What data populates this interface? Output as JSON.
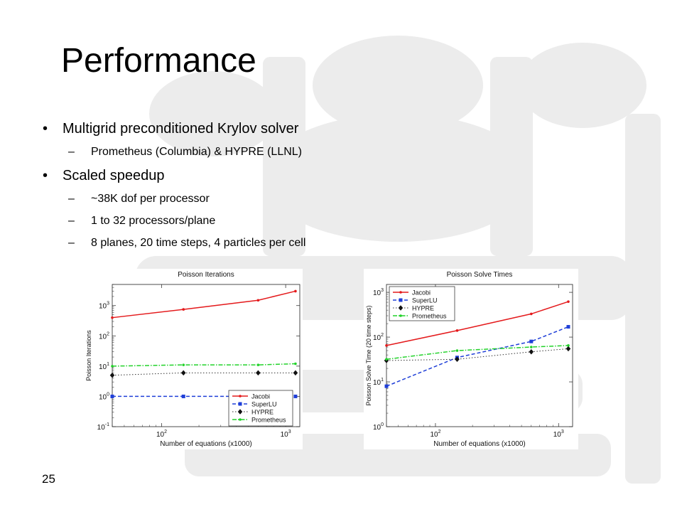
{
  "slide": {
    "title": "Performance",
    "page_number": "25",
    "bullets": [
      {
        "level": 1,
        "text": "Multigrid preconditioned Krylov solver"
      },
      {
        "level": 2,
        "text": "Prometheus (Columbia) & HYPRE (LLNL)"
      },
      {
        "level": 1,
        "text": "Scaled speedup"
      },
      {
        "level": 2,
        "text": "~38K dof per processor"
      },
      {
        "level": 2,
        "text": "1 to 32 processors/plane"
      },
      {
        "level": 2,
        "text": "8 planes, 20 time steps, 4 particles per cell"
      }
    ],
    "bullet_marks": {
      "level1": "•",
      "level2": "–"
    }
  },
  "chart_data": [
    {
      "type": "line",
      "title": "Poisson Iterations",
      "xlabel": "Number of equations (x1000)",
      "ylabel": "Poisson Iterations",
      "xscale": "log",
      "yscale": "log",
      "xlim": [
        40,
        1300
      ],
      "ylim": [
        0.1,
        5000
      ],
      "xticks": [
        100,
        1000
      ],
      "xtick_labels": [
        "10^2",
        "10^3"
      ],
      "yticks": [
        0.1,
        1,
        10,
        100,
        1000
      ],
      "ytick_labels": [
        "10^-1",
        "10^0",
        "10^1",
        "10^2",
        "10^3"
      ],
      "grid": false,
      "legend_position": "bottom-right",
      "x": [
        38,
        150,
        600,
        1200
      ],
      "series": [
        {
          "name": "Jacobi",
          "values": [
            400,
            750,
            1500,
            3000
          ],
          "color": "#e41a1c",
          "dash": "solid",
          "marker": "dot"
        },
        {
          "name": "SuperLU",
          "values": [
            1,
            1,
            1,
            1
          ],
          "color": "#1f3fd8",
          "dash": "dashed",
          "marker": "square"
        },
        {
          "name": "HYPRE",
          "values": [
            5,
            6,
            6,
            6
          ],
          "color": "#333333",
          "dash": "dotted",
          "marker": "diamond"
        },
        {
          "name": "Prometheus",
          "values": [
            10,
            11,
            11,
            12
          ],
          "color": "#22d22a",
          "dash": "dashdot",
          "marker": "dot"
        }
      ]
    },
    {
      "type": "line",
      "title": "Poisson Solve Times",
      "xlabel": "Number of equations (x1000)",
      "ylabel": "Poisson Solve Time (20 time steps)",
      "xscale": "log",
      "yscale": "log",
      "xlim": [
        40,
        1300
      ],
      "ylim": [
        1,
        1500
      ],
      "xticks": [
        100,
        1000
      ],
      "xtick_labels": [
        "10^2",
        "10^3"
      ],
      "yticks": [
        1,
        10,
        100,
        1000
      ],
      "ytick_labels": [
        "10^0",
        "10^1",
        "10^2",
        "10^3"
      ],
      "grid": false,
      "legend_position": "top-left",
      "x": [
        38,
        150,
        600,
        1200
      ],
      "series": [
        {
          "name": "Jacobi",
          "values": [
            65,
            140,
            330,
            620
          ],
          "color": "#e41a1c",
          "dash": "solid",
          "marker": "dot"
        },
        {
          "name": "SuperLU",
          "values": [
            8,
            35,
            80,
            170
          ],
          "color": "#1f3fd8",
          "dash": "dashed",
          "marker": "square"
        },
        {
          "name": "HYPRE",
          "values": [
            30,
            32,
            47,
            55
          ],
          "color": "#333333",
          "dash": "dotted",
          "marker": "diamond"
        },
        {
          "name": "Prometheus",
          "values": [
            32,
            50,
            60,
            65
          ],
          "color": "#22d22a",
          "dash": "dashdot",
          "marker": "dot"
        }
      ]
    }
  ]
}
